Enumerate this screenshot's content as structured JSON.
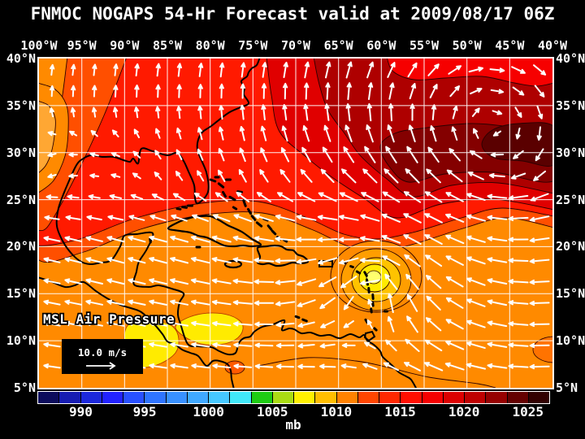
{
  "title": "FNMOC NOGAPS 54-Hr Forecast valid at 2009/08/17 06Z",
  "axes": {
    "top_labels": [
      "100°W",
      "95°W",
      "90°W",
      "85°W",
      "80°W",
      "75°W",
      "70°W",
      "65°W",
      "60°W",
      "55°W",
      "50°W",
      "45°W",
      "40°W"
    ],
    "left_labels": [
      "40°N",
      "35°N",
      "30°N",
      "25°N",
      "20°N",
      "15°N",
      "10°N",
      "5°N"
    ],
    "right_labels": [
      "40°N",
      "35°N",
      "30°N",
      "25°N",
      "20°N",
      "15°N",
      "10°N",
      "5°N"
    ]
  },
  "map": {
    "field_label": "MSL Air Pressure",
    "wind_legend_label": "10.0 m/s"
  },
  "colorbar": {
    "unit": "mb",
    "tick_labels": [
      "990",
      "995",
      "1000",
      "1005",
      "1010",
      "1015",
      "1020",
      "1025"
    ],
    "swatch_colors": [
      "#0C0C5C",
      "#161CB2",
      "#1C28DC",
      "#2222FF",
      "#2850FF",
      "#2E74FF",
      "#3890FF",
      "#3FA8FF",
      "#46C8FF",
      "#40E8F8",
      "#1ECC14",
      "#AADC14",
      "#FFF000",
      "#FFBE00",
      "#FF8200",
      "#FF4600",
      "#FF2800",
      "#FF0F00",
      "#F50000",
      "#DC0000",
      "#BE0000",
      "#960000",
      "#640000",
      "#320000"
    ]
  },
  "colors": {
    "background": "#000000",
    "text": "#FFFFFF",
    "grid_lines": "#FFFFFF",
    "coastline": "#000000",
    "wind_arrows": "#FFFFFF",
    "contour_stroke": "#2A0000",
    "pressure_shading": {
      "storm_core_yellow": "#FFFF6E",
      "low_yellow": "#FFEB00",
      "gold": "#FFC300",
      "orange": "#FF8A00",
      "red_orange": "#FF4F00",
      "red": "#FF1A00",
      "dark_red": "#AE0000",
      "maroon_high": "#5A0000"
    }
  }
}
